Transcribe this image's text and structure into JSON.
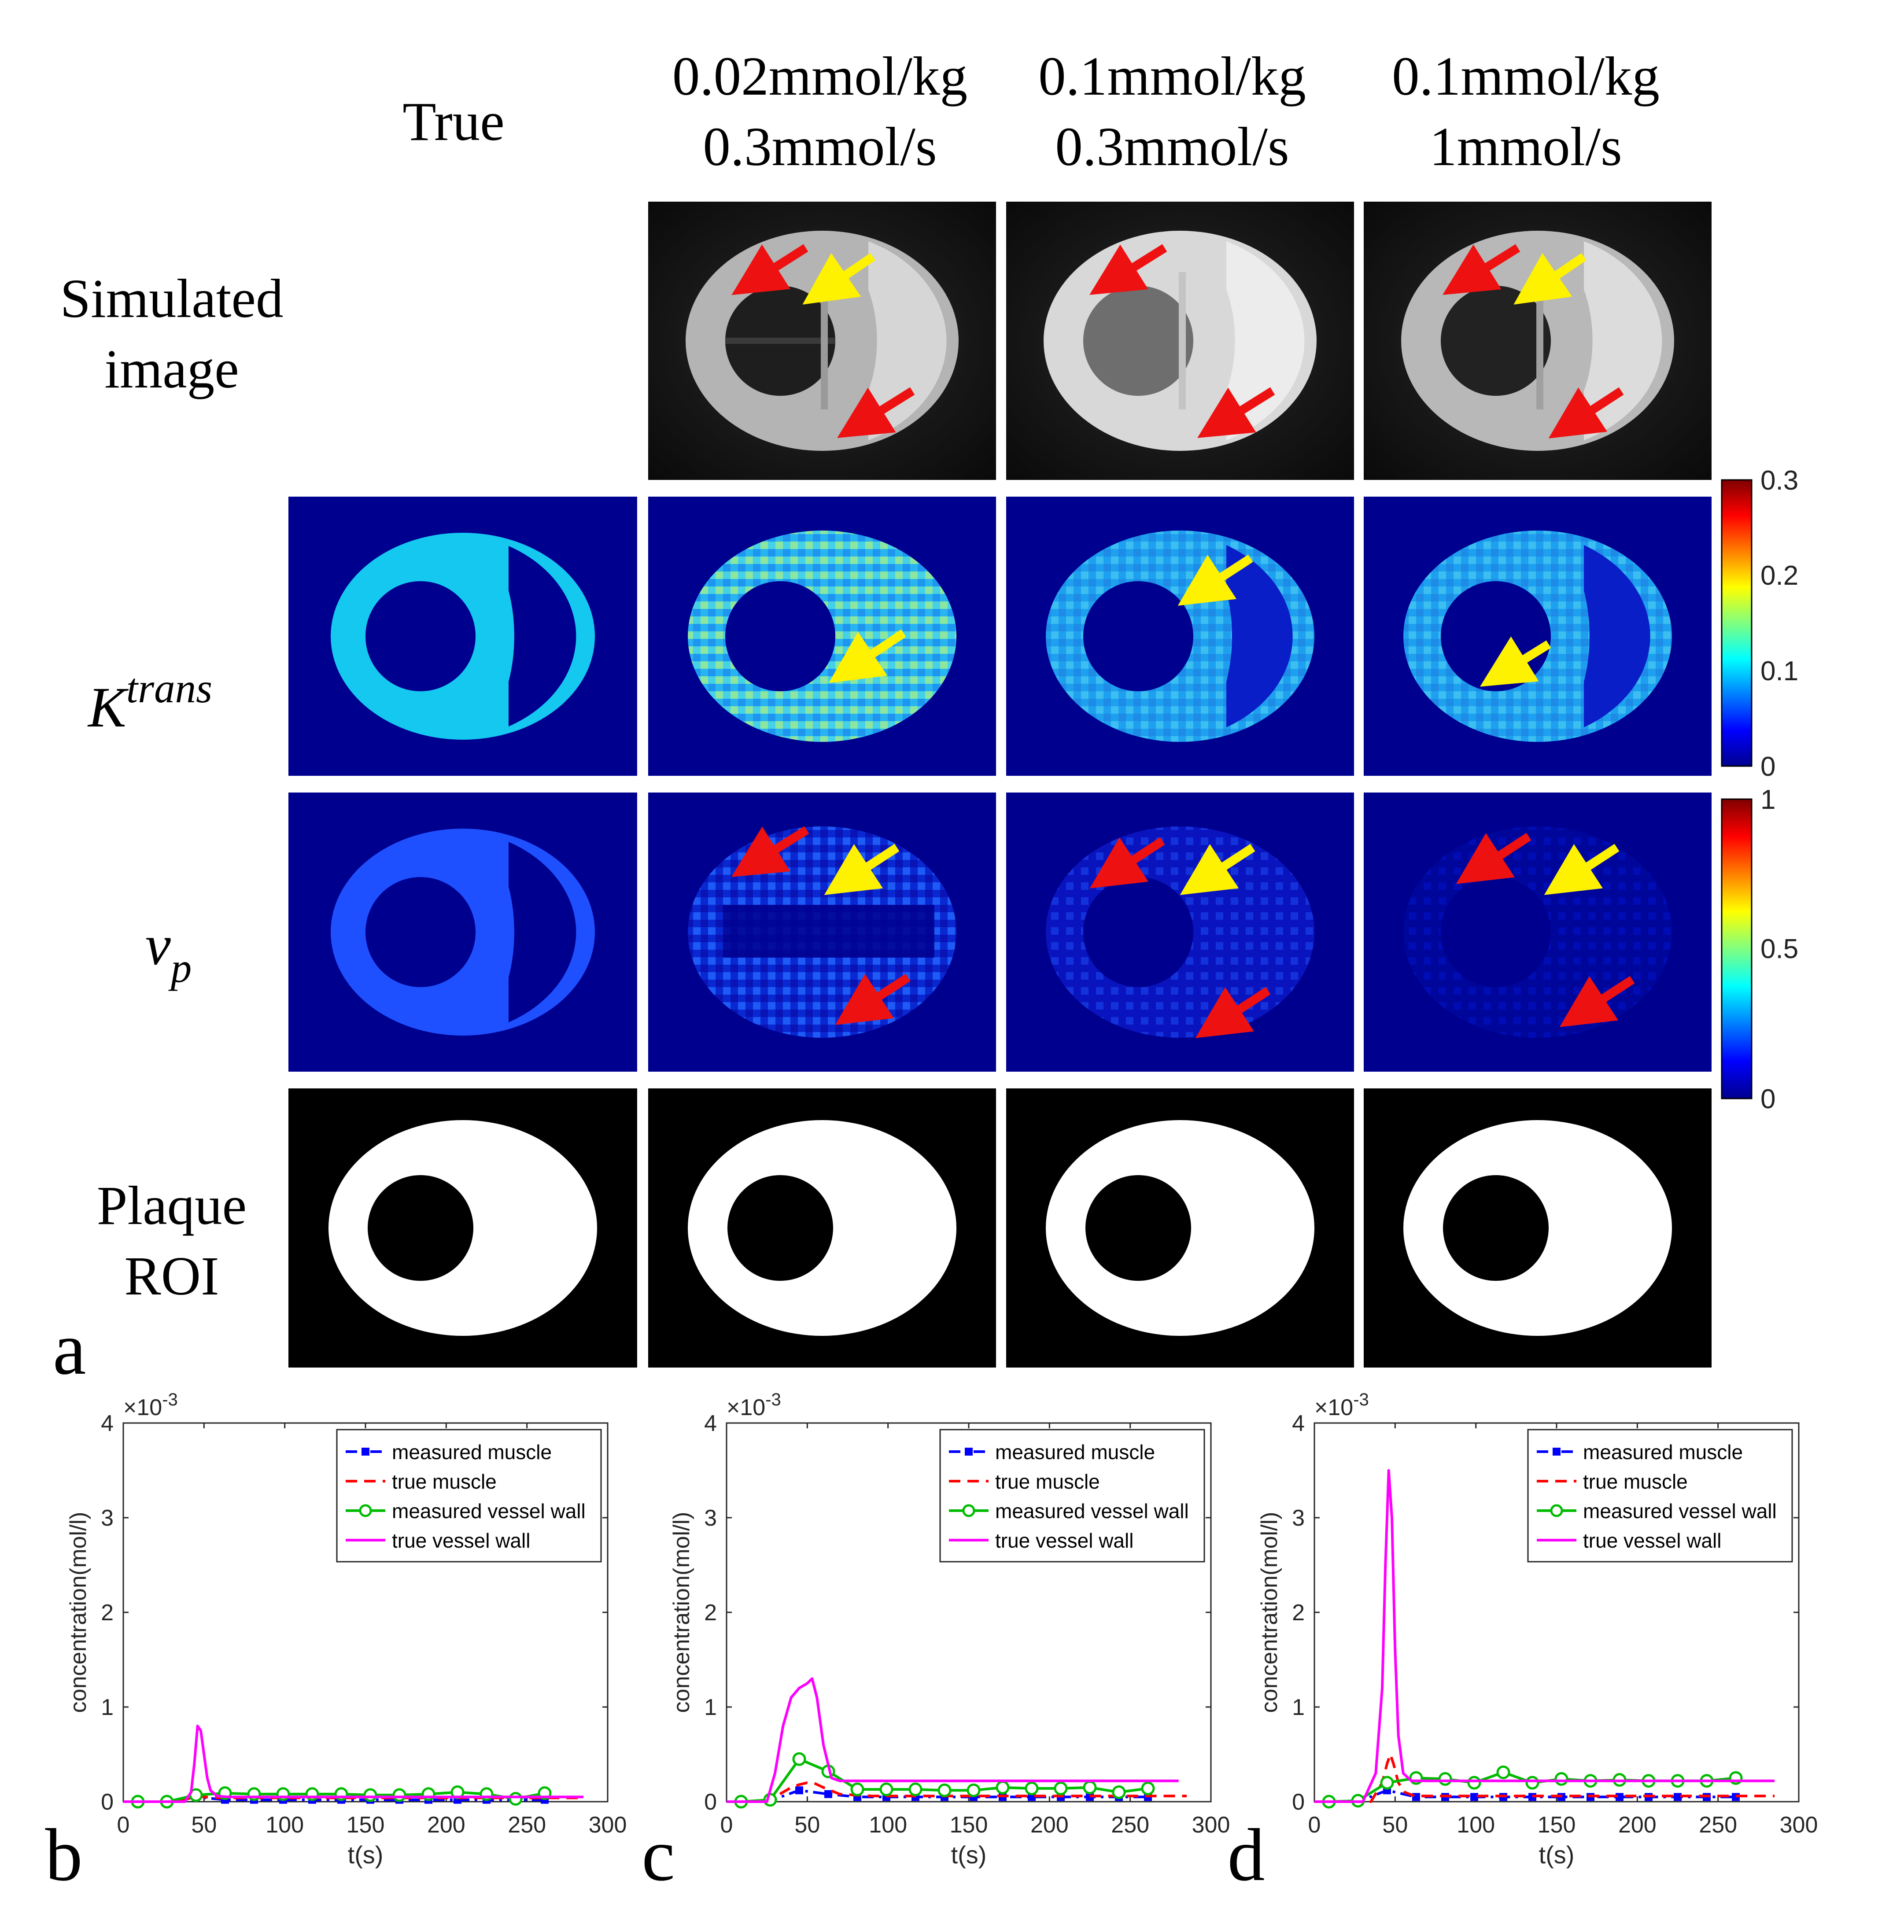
{
  "panel_a": {
    "panel_letter": "a",
    "column_headers": [
      {
        "line1": "True",
        "line2": ""
      },
      {
        "line1": "0.02mmol/kg",
        "line2": "0.3mmol/s"
      },
      {
        "line1": "0.1mmol/kg",
        "line2": "0.3mmol/s"
      },
      {
        "line1": "0.1mmol/kg",
        "line2": "1mmol/s"
      }
    ],
    "row_labels": {
      "simulated": {
        "line1": "Simulated",
        "line2": "image"
      },
      "ktrans": {
        "base": "K",
        "sup": "trans"
      },
      "vp": {
        "base": "v",
        "sub": "p"
      },
      "roi": {
        "line1": "Plaque",
        "line2": "ROI"
      }
    },
    "colorbars": [
      {
        "name": "ktrans",
        "colormap": "jet",
        "max_label": "0.3",
        "ticks": [
          "0.3",
          "0.2",
          "0.1",
          "0"
        ]
      },
      {
        "name": "vp",
        "colormap": "jet",
        "max_label": "1",
        "ticks": [
          "1",
          "0.5",
          "0"
        ]
      }
    ],
    "colors": {
      "jet_low": "#00008F",
      "ring_ktrans": "#14C8F0",
      "ring_vp": "#1E50FF",
      "arrow_red": "#EE1111",
      "arrow_yellow": "#FFF200"
    }
  },
  "chart_data": [
    {
      "panel_letter": "b",
      "type": "line",
      "xlabel": "t(s)",
      "ylabel": "concentration(mol/l)",
      "y_multiplier": "×10",
      "y_exponent": "-3",
      "xlim": [
        0,
        300
      ],
      "ylim": [
        0,
        4
      ],
      "x_ticks": [
        "0",
        "50",
        "100",
        "150",
        "200",
        "250",
        "300"
      ],
      "y_ticks": [
        "0",
        "1",
        "2",
        "3",
        "4"
      ],
      "legend_position": "top-right",
      "series": [
        {
          "name": "measured muscle",
          "color": "#0000FF",
          "style": "dashdot-square",
          "x": [
            9,
            27,
            45,
            63,
            81,
            99,
            117,
            135,
            153,
            171,
            189,
            207,
            225,
            243,
            261
          ],
          "y": [
            0,
            0,
            0.05,
            0.02,
            0.02,
            0.02,
            0.02,
            0.02,
            0.02,
            0.02,
            0.02,
            0.02,
            0.02,
            0.02,
            0.02
          ]
        },
        {
          "name": "true muscle",
          "color": "#FF0000",
          "style": "dashed",
          "x": [
            0,
            30,
            40,
            45,
            50,
            60,
            80,
            120,
            200,
            285
          ],
          "y": [
            0,
            0,
            0.03,
            0.06,
            0.05,
            0.04,
            0.04,
            0.04,
            0.04,
            0.04
          ]
        },
        {
          "name": "measured vessel wall",
          "color": "#00BB00",
          "style": "solid-circle",
          "x": [
            9,
            27,
            45,
            63,
            81,
            99,
            117,
            135,
            153,
            171,
            189,
            207,
            225,
            243,
            261
          ],
          "y": [
            0,
            0,
            0.07,
            0.09,
            0.08,
            0.08,
            0.08,
            0.08,
            0.07,
            0.07,
            0.08,
            0.1,
            0.08,
            0.03,
            0.09
          ]
        },
        {
          "name": "true vessel wall",
          "color": "#FF00FF",
          "style": "solid",
          "x": [
            0,
            38,
            42,
            44,
            46,
            48,
            50,
            52,
            54,
            58,
            65,
            80,
            120,
            200,
            285
          ],
          "y": [
            0,
            0,
            0.1,
            0.4,
            0.8,
            0.75,
            0.5,
            0.25,
            0.12,
            0.06,
            0.05,
            0.05,
            0.05,
            0.05,
            0.05
          ]
        }
      ]
    },
    {
      "panel_letter": "c",
      "type": "line",
      "xlabel": "t(s)",
      "ylabel": "concentration(mol/l)",
      "y_multiplier": "×10",
      "y_exponent": "-3",
      "xlim": [
        0,
        300
      ],
      "ylim": [
        0,
        4
      ],
      "x_ticks": [
        "0",
        "50",
        "100",
        "150",
        "200",
        "250",
        "300"
      ],
      "y_ticks": [
        "0",
        "1",
        "2",
        "3",
        "4"
      ],
      "legend_position": "top-right",
      "series": [
        {
          "name": "measured muscle",
          "color": "#0000FF",
          "style": "dashdot-square",
          "x": [
            9,
            27,
            45,
            63,
            81,
            99,
            117,
            135,
            153,
            171,
            189,
            207,
            225,
            243,
            261
          ],
          "y": [
            0,
            0.01,
            0.12,
            0.08,
            0.05,
            0.05,
            0.05,
            0.05,
            0.05,
            0.05,
            0.05,
            0.05,
            0.05,
            0.05,
            0.05
          ]
        },
        {
          "name": "true muscle",
          "color": "#FF0000",
          "style": "dashed",
          "x": [
            0,
            25,
            35,
            40,
            45,
            50,
            55,
            60,
            70,
            90,
            130,
            200,
            285
          ],
          "y": [
            0,
            0,
            0.1,
            0.15,
            0.18,
            0.2,
            0.19,
            0.15,
            0.08,
            0.06,
            0.06,
            0.06,
            0.06
          ]
        },
        {
          "name": "measured vessel wall",
          "color": "#00BB00",
          "style": "solid-circle",
          "x": [
            9,
            27,
            45,
            63,
            81,
            99,
            117,
            135,
            153,
            171,
            189,
            207,
            225,
            243,
            261
          ],
          "y": [
            0,
            0.02,
            0.45,
            0.32,
            0.13,
            0.13,
            0.13,
            0.12,
            0.12,
            0.15,
            0.14,
            0.14,
            0.15,
            0.1,
            0.14
          ]
        },
        {
          "name": "true vessel wall",
          "color": "#FF00FF",
          "style": "solid",
          "x": [
            0,
            25,
            30,
            35,
            40,
            45,
            50,
            53,
            56,
            60,
            65,
            70,
            100,
            150,
            200,
            280
          ],
          "y": [
            0,
            0,
            0.3,
            0.8,
            1.1,
            1.2,
            1.25,
            1.3,
            1.1,
            0.6,
            0.25,
            0.22,
            0.22,
            0.22,
            0.22,
            0.22
          ]
        }
      ]
    },
    {
      "panel_letter": "d",
      "type": "line",
      "xlabel": "t(s)",
      "ylabel": "concentration(mol/l)",
      "y_multiplier": "×10",
      "y_exponent": "-3",
      "xlim": [
        0,
        300
      ],
      "ylim": [
        0,
        4
      ],
      "x_ticks": [
        "0",
        "50",
        "100",
        "150",
        "200",
        "250",
        "300"
      ],
      "y_ticks": [
        "0",
        "1",
        "2",
        "3",
        "4"
      ],
      "legend_position": "top-right",
      "series": [
        {
          "name": "measured muscle",
          "color": "#0000FF",
          "style": "dashdot-square",
          "x": [
            9,
            27,
            45,
            63,
            81,
            99,
            117,
            135,
            153,
            171,
            189,
            207,
            225,
            243,
            261
          ],
          "y": [
            0,
            0,
            0.12,
            0.05,
            0.05,
            0.05,
            0.05,
            0.05,
            0.05,
            0.05,
            0.05,
            0.05,
            0.05,
            0.05,
            0.05
          ]
        },
        {
          "name": "true muscle",
          "color": "#FF0000",
          "style": "dashed",
          "x": [
            0,
            35,
            42,
            45,
            47,
            49,
            52,
            56,
            62,
            80,
            150,
            285
          ],
          "y": [
            0,
            0,
            0.2,
            0.4,
            0.5,
            0.4,
            0.2,
            0.1,
            0.06,
            0.06,
            0.06,
            0.06
          ]
        },
        {
          "name": "measured vessel wall",
          "color": "#00BB00",
          "style": "solid-circle",
          "x": [
            9,
            27,
            45,
            63,
            81,
            99,
            117,
            135,
            153,
            171,
            189,
            207,
            225,
            243,
            261
          ],
          "y": [
            0,
            0.01,
            0.2,
            0.25,
            0.24,
            0.2,
            0.31,
            0.2,
            0.24,
            0.22,
            0.23,
            0.22,
            0.22,
            0.22,
            0.25
          ]
        },
        {
          "name": "true vessel wall",
          "color": "#FF00FF",
          "style": "solid",
          "x": [
            0,
            30,
            38,
            42,
            44,
            46,
            48,
            50,
            52,
            55,
            60,
            70,
            100,
            200,
            285
          ],
          "y": [
            0,
            0,
            0.3,
            1.2,
            2.5,
            3.5,
            3.0,
            1.6,
            0.7,
            0.3,
            0.22,
            0.22,
            0.22,
            0.22,
            0.22
          ]
        }
      ]
    }
  ]
}
